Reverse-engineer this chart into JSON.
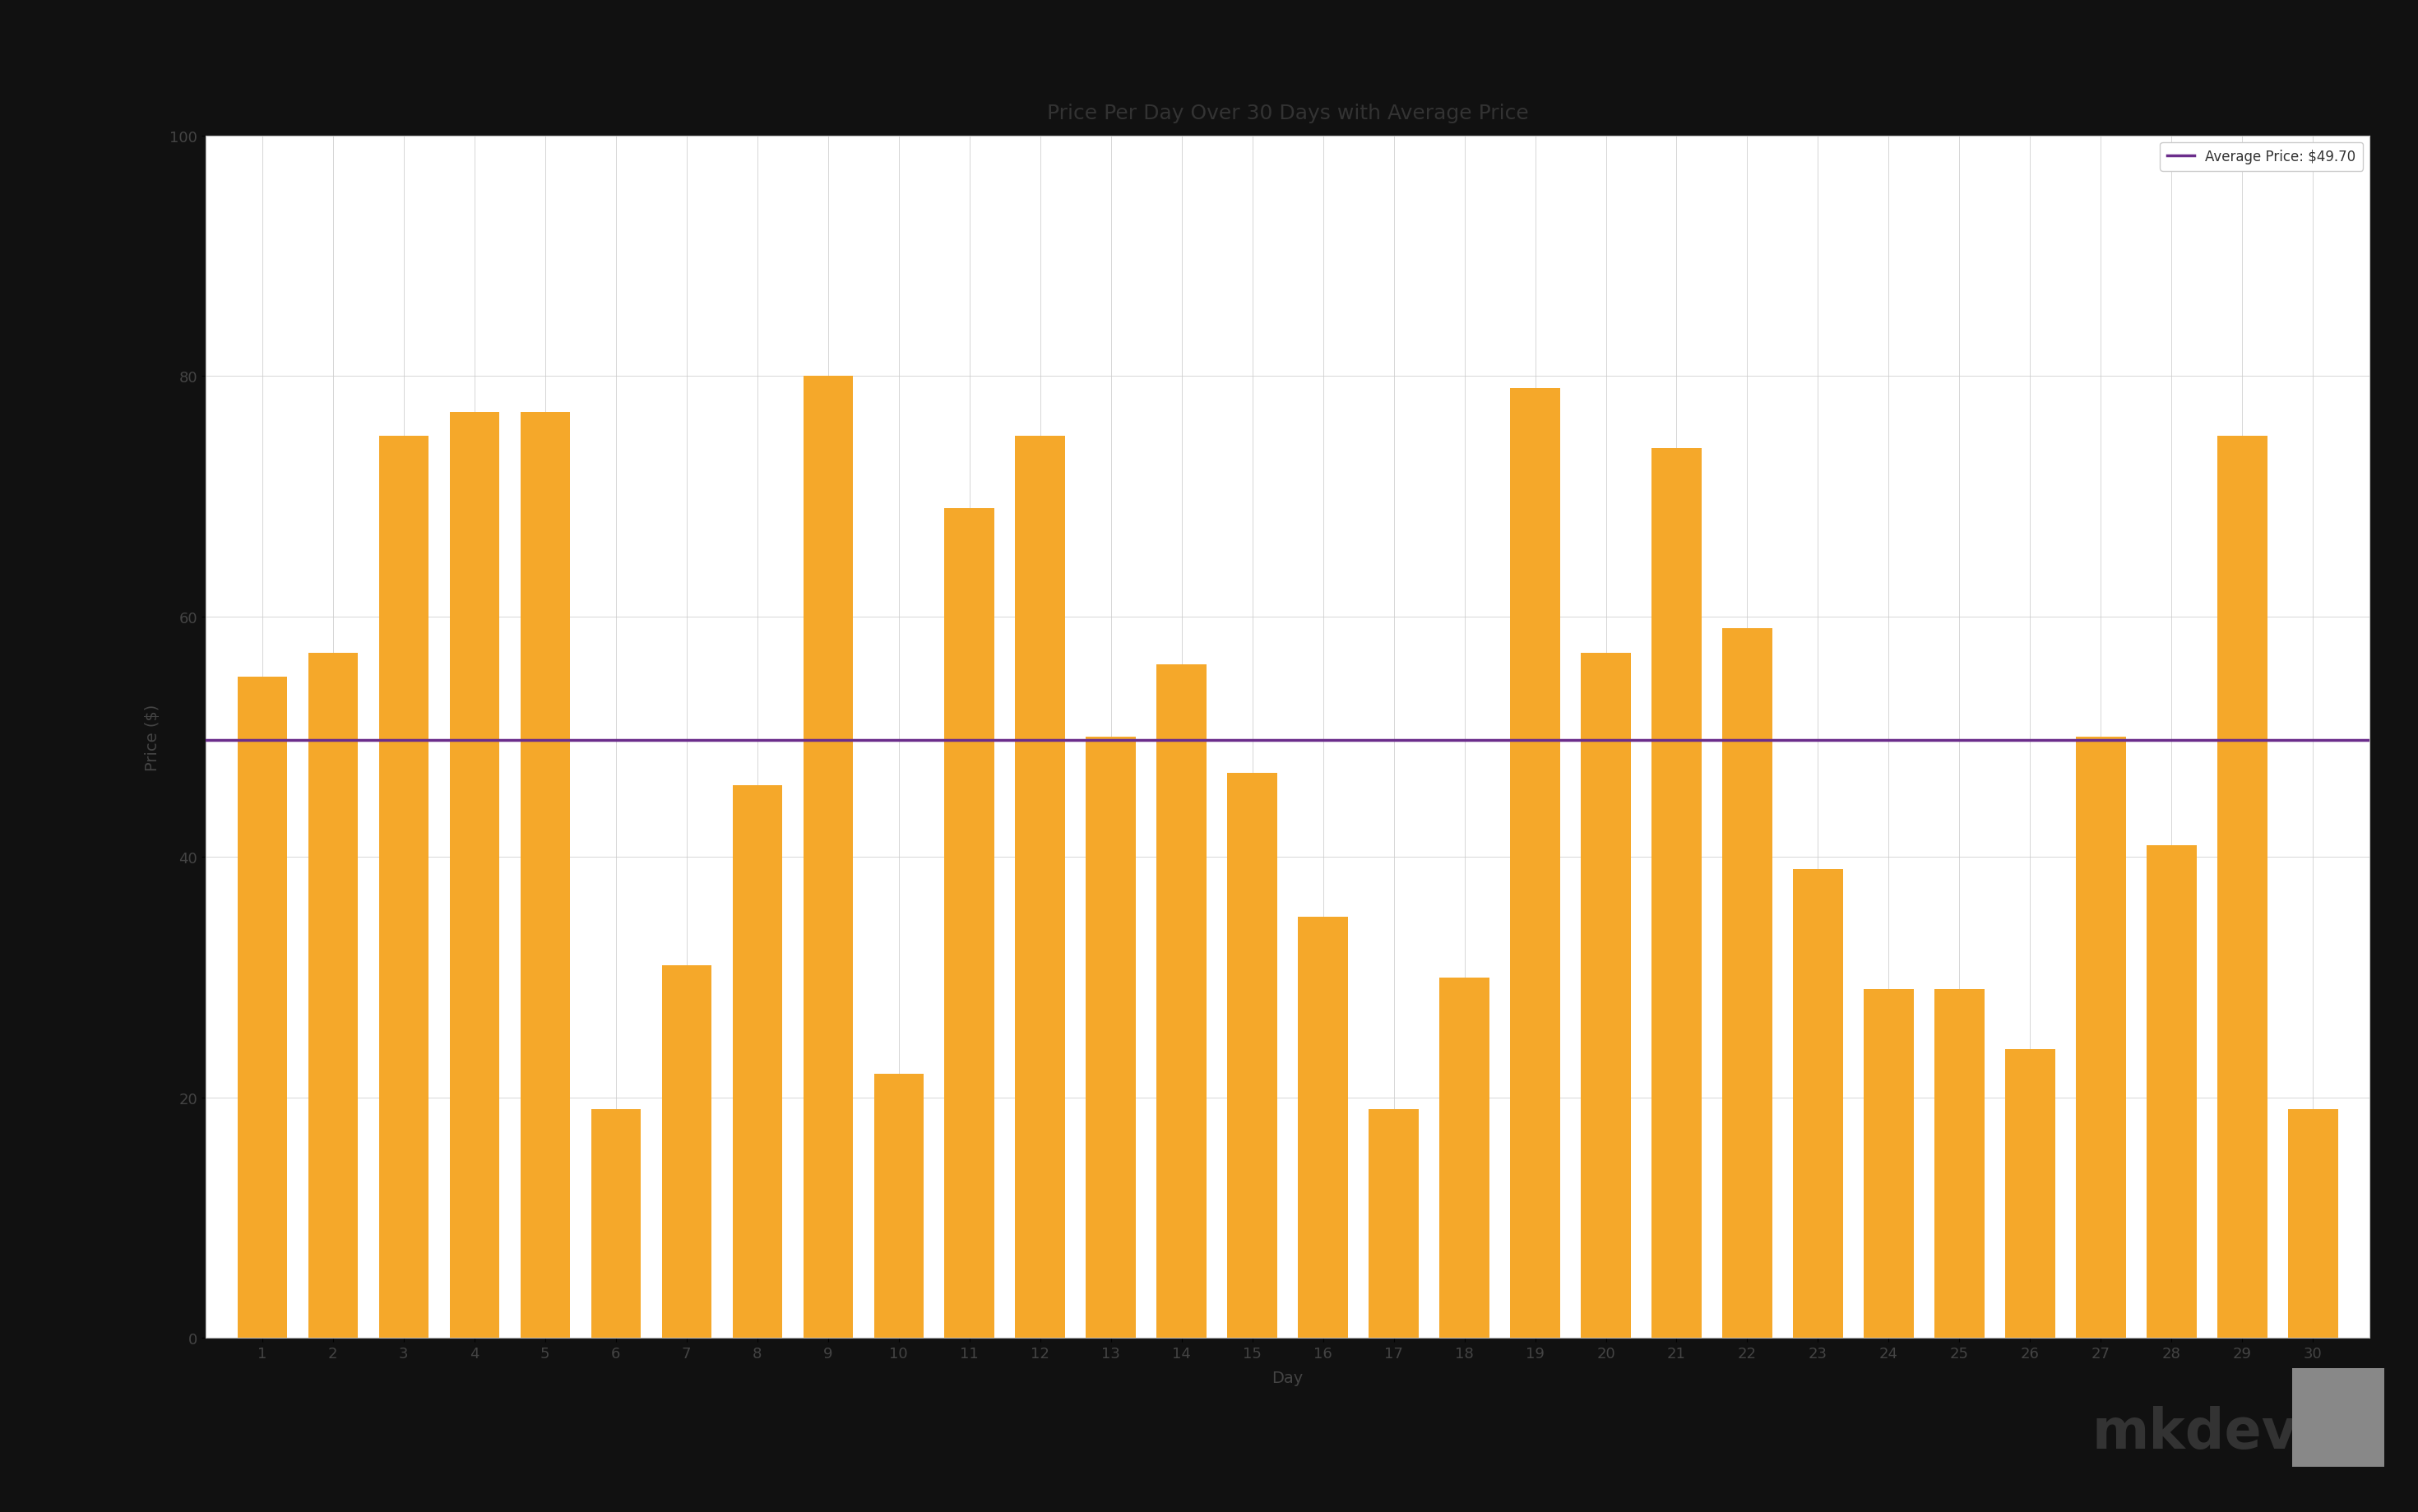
{
  "title": "Price Per Day Over 30 Days with Average Price",
  "xlabel": "Day",
  "ylabel": "Price ($)",
  "avg_price": 49.7,
  "avg_label": "Average Price: $49.70",
  "bar_color": "#F5A82A",
  "avg_line_color": "#6B2D8B",
  "ylim": [
    0,
    100
  ],
  "yticks": [
    0,
    20,
    40,
    60,
    80,
    100
  ],
  "days": [
    1,
    2,
    3,
    4,
    5,
    6,
    7,
    8,
    9,
    10,
    11,
    12,
    13,
    14,
    15,
    16,
    17,
    18,
    19,
    20,
    21,
    22,
    23,
    24,
    25,
    26,
    27,
    28,
    29,
    30
  ],
  "prices": [
    55,
    57,
    75,
    77,
    77,
    19,
    31,
    46,
    80,
    22,
    69,
    75,
    50,
    56,
    47,
    35,
    19,
    30,
    79,
    57,
    74,
    59,
    39,
    29,
    29,
    24,
    50,
    41,
    75,
    19
  ],
  "background_color": "#ffffff",
  "outer_background": "#111111",
  "chart_background": "#f8f8f8",
  "grid_color": "#cccccc",
  "title_fontsize": 18,
  "label_fontsize": 14,
  "tick_fontsize": 13,
  "legend_fontsize": 12
}
